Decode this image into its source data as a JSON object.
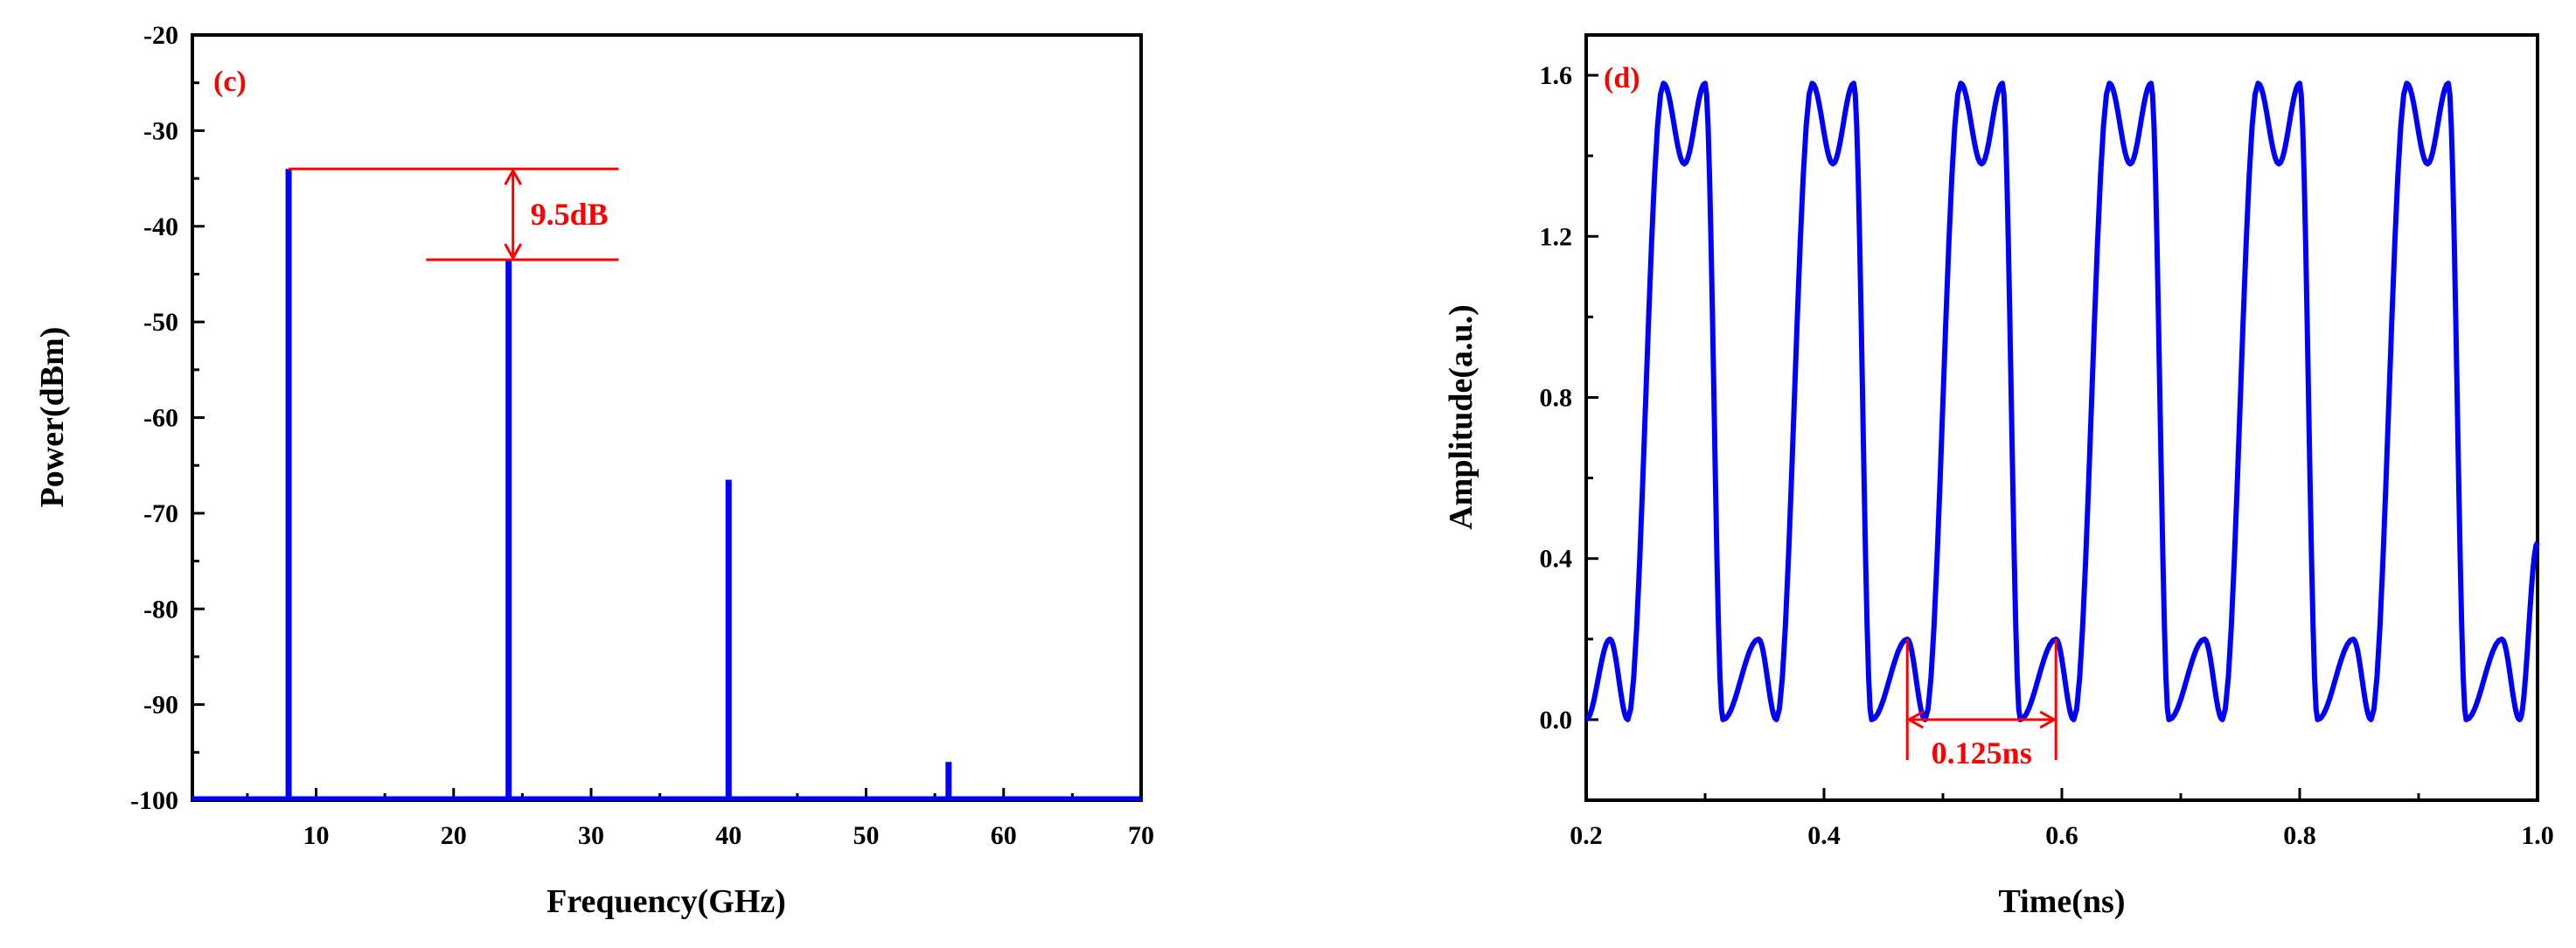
{
  "colors": {
    "series": "#0000ff",
    "annotation": "#ff0000",
    "axis": "#000000"
  },
  "chart_data": [
    {
      "type": "bar",
      "panel_label": "(c)",
      "xlabel": "Frequency(GHz)",
      "ylabel": "Power(dBm)",
      "xlim": [
        1,
        70
      ],
      "ylim": [
        -100,
        -20
      ],
      "xticks": [
        10,
        20,
        30,
        40,
        50,
        60,
        70
      ],
      "yticks": [
        -100,
        -90,
        -80,
        -70,
        -60,
        -50,
        -40,
        -30,
        -20
      ],
      "series": [
        {
          "x": [
            8,
            24,
            40,
            56
          ],
          "y": [
            -34,
            -43.5,
            -66.5,
            -96
          ]
        }
      ],
      "baseline": -100,
      "annotations": [
        {
          "text": "9.5dB",
          "from": -34,
          "to": -43.5
        }
      ]
    },
    {
      "type": "line",
      "panel_label": "(d)",
      "xlabel": "Time(ns)",
      "ylabel": "Amplitude(a.u.)",
      "xlim": [
        0.2,
        1.0
      ],
      "ylim": [
        -0.2,
        1.7
      ],
      "xticks": [
        0.2,
        0.4,
        0.6,
        0.8,
        1.0
      ],
      "yticks": [
        0.0,
        0.4,
        0.8,
        1.2,
        1.6
      ],
      "period_ns": 0.125,
      "pattern": "bits 0,1 alternating per period; low level 0.0-0.2 ripple, high level 1.38-1.58 ripple",
      "series": [
        {
          "x": [
            0.2,
            0.22,
            0.235,
            0.265,
            0.2825,
            0.3,
            0.315,
            0.345,
            0.36,
            0.39,
            0.4075,
            0.425,
            0.44,
            0.47,
            0.485,
            0.515,
            0.5325,
            0.55,
            0.565,
            0.595,
            0.61,
            0.64,
            0.6575,
            0.675,
            0.69,
            0.72,
            0.735,
            0.765,
            0.7825,
            0.8,
            0.815,
            0.845,
            0.86,
            0.89,
            0.9075,
            0.925,
            0.94,
            0.97,
            0.985,
            1.0
          ],
          "y": [
            0.0,
            0.2,
            0.0,
            1.58,
            1.38,
            1.58,
            0.0,
            0.2,
            0.0,
            1.58,
            1.38,
            1.58,
            0.0,
            0.2,
            0.0,
            1.58,
            1.38,
            1.58,
            0.0,
            0.2,
            0.0,
            1.58,
            1.38,
            1.58,
            0.0,
            0.2,
            0.0,
            1.58,
            1.38,
            1.58,
            0.0,
            0.2,
            0.0,
            1.58,
            1.38,
            1.58,
            0.0,
            0.2,
            0.0,
            0.44
          ]
        }
      ],
      "annotations": [
        {
          "text": "0.125ns",
          "from": 0.47,
          "to": 0.595
        }
      ]
    }
  ]
}
